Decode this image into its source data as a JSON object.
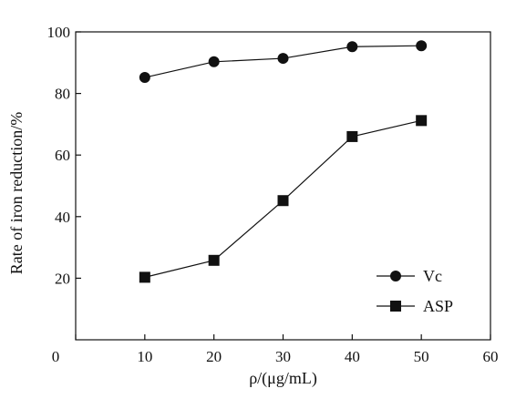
{
  "chart_data": {
    "type": "line",
    "xlabel": "ρ/(μg/mL)",
    "ylabel": "Rate of  iron reduction/%",
    "xlim": [
      0,
      60
    ],
    "ylim": [
      0,
      100
    ],
    "xticks": [
      0,
      10,
      20,
      30,
      40,
      50,
      60
    ],
    "yticks": [
      20,
      40,
      60,
      80,
      100
    ],
    "x": [
      10,
      20,
      30,
      40,
      50
    ],
    "grid": false,
    "legend_position": "bottom-right",
    "series": [
      {
        "name": "Vc",
        "marker": "circle",
        "color": "#111111",
        "values": [
          85.2,
          90.3,
          91.4,
          95.2,
          95.5
        ]
      },
      {
        "name": "ASP",
        "marker": "square",
        "color": "#111111",
        "values": [
          20.3,
          25.8,
          45.2,
          66.0,
          71.2
        ]
      }
    ]
  }
}
